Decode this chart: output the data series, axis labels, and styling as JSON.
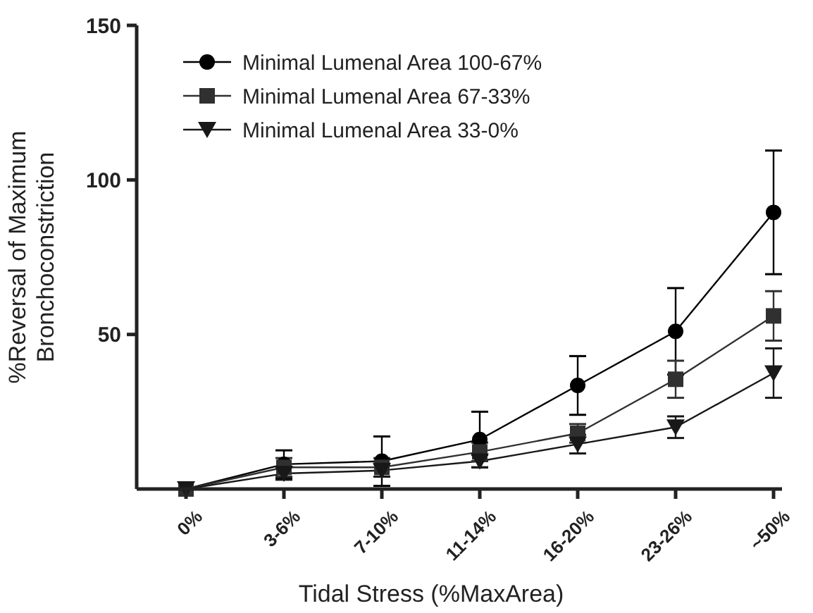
{
  "chart_data": {
    "type": "line",
    "xlabel": "Tidal Stress (%MaxArea)",
    "ylabel": "%Reversal of Maximum\nBronchoconstriction",
    "categories": [
      "0%",
      "3-6%",
      "7-10%",
      "11-14%",
      "16-20%",
      "23-26%",
      "~50%"
    ],
    "ylim": [
      0,
      150
    ],
    "yticks": [
      50,
      100,
      150
    ],
    "grid": false,
    "legend": "top left",
    "series": [
      {
        "name": "Minimal Lumenal Area 100-67%",
        "color": "#000000",
        "marker": "circle",
        "values": [
          0,
          8,
          9,
          16,
          33.5,
          51,
          89.5
        ],
        "errors": [
          null,
          4.5,
          8,
          9,
          9.5,
          14,
          20
        ]
      },
      {
        "name": "Minimal Lumenal Area 67-33%",
        "color": "#303030",
        "marker": "square",
        "values": [
          0,
          7,
          7,
          12,
          18,
          35.5,
          56
        ],
        "errors": [
          null,
          3,
          3,
          3,
          3,
          6,
          8
        ]
      },
      {
        "name": "Minimal Lumenal Area 33-0%",
        "color": "#181818",
        "marker": "triangle",
        "values": [
          0,
          5,
          6,
          9,
          14.5,
          20,
          37.5
        ],
        "errors": [
          null,
          2,
          2,
          2,
          3,
          3.5,
          8
        ]
      }
    ]
  }
}
